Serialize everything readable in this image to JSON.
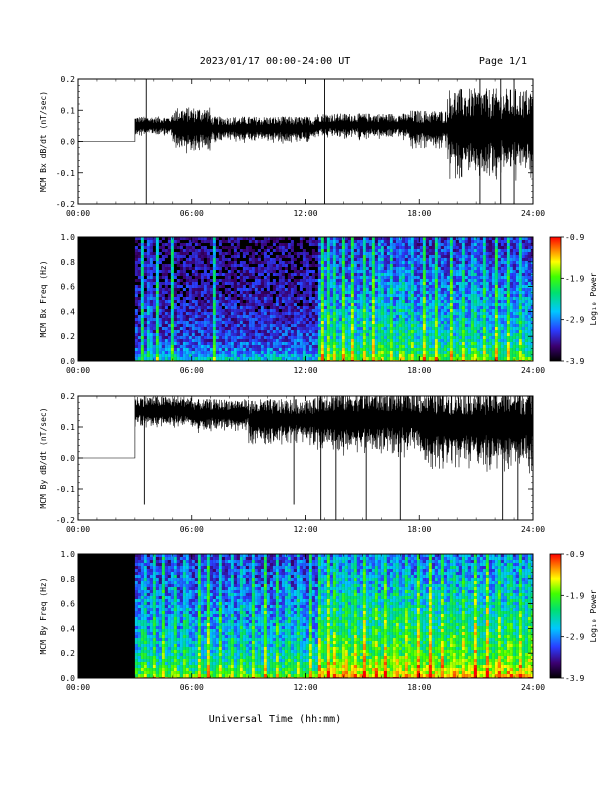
{
  "header": {
    "title": "2023/01/17  00:00-24:00 UT",
    "page": "Page 1/1"
  },
  "xlabel": "Universal Time (hh:mm)",
  "x_ticks": [
    "00:00",
    "06:00",
    "12:00",
    "18:00",
    "24:00"
  ],
  "chart_data": [
    {
      "type": "line",
      "ylabel": "MCM Bx dB/dt (nT/sec)",
      "xlim": [
        0,
        24
      ],
      "ylim": [
        -0.2,
        0.2
      ],
      "y_ticks": [
        "-0.2",
        "-0.1",
        "0.0",
        "0.1",
        "0.2"
      ],
      "series": [
        {
          "segments": [
            {
              "x": [
                0,
                3.0
              ],
              "center": 0.0,
              "amp": 0.0
            },
            {
              "x": [
                3.0,
                5.0
              ],
              "center": 0.05,
              "amp": 0.03
            },
            {
              "x": [
                5.0,
                7.0
              ],
              "center": 0.04,
              "amp": 0.07
            },
            {
              "x": [
                7.0,
                12.5
              ],
              "center": 0.04,
              "amp": 0.04
            },
            {
              "x": [
                12.5,
                17.5
              ],
              "center": 0.05,
              "amp": 0.04
            },
            {
              "x": [
                17.5,
                19.5
              ],
              "center": 0.04,
              "amp": 0.06
            },
            {
              "x": [
                19.5,
                24.0
              ],
              "center": 0.03,
              "amp": 0.14
            }
          ],
          "spikes": [
            {
              "x": 3.6,
              "min": -0.2,
              "max": 0.2
            },
            {
              "x": 13.0,
              "min": -0.2,
              "max": 0.2
            },
            {
              "x": 21.2,
              "min": -0.2,
              "max": 0.2
            },
            {
              "x": 22.3,
              "min": -0.2,
              "max": 0.2
            },
            {
              "x": 23.0,
              "min": -0.2,
              "max": 0.2
            }
          ]
        }
      ]
    },
    {
      "type": "heatmap",
      "ylabel": "MCM Bx Freq (Hz)",
      "xlim": [
        0,
        24
      ],
      "ylim": [
        0.0,
        1.0
      ],
      "y_ticks": [
        "0.0",
        "0.2",
        "0.4",
        "0.6",
        "0.8",
        "1.0"
      ],
      "colorbar": {
        "label": "Log₁₀ Power",
        "range": [
          -3.9,
          -0.9
        ],
        "ticks": [
          "-0.9",
          "-1.9",
          "-2.9",
          "-3.9"
        ]
      },
      "data_start": 3.0,
      "intensity_profile": [
        {
          "x": [
            3.0,
            12.5
          ],
          "base": 0.25
        },
        {
          "x": [
            12.5,
            24.0
          ],
          "base": 0.45
        }
      ],
      "streaks": [
        3.3,
        3.7,
        4.1,
        4.9,
        7.1,
        12.8,
        13.1,
        13.4,
        13.9,
        14.4,
        15.0,
        15.5,
        15.9,
        16.4,
        17.0,
        17.5,
        18.2,
        18.8,
        19.6,
        20.2,
        20.8,
        21.4,
        22.0,
        22.6,
        23.3
      ]
    },
    {
      "type": "line",
      "ylabel": "MCM By dB/dt (nT/sec)",
      "xlim": [
        0,
        24
      ],
      "ylim": [
        -0.2,
        0.2
      ],
      "y_ticks": [
        "-0.2",
        "-0.1",
        "0.0",
        "0.1",
        "0.2"
      ],
      "series": [
        {
          "segments": [
            {
              "x": [
                0,
                3.0
              ],
              "center": 0.0,
              "amp": 0.0
            },
            {
              "x": [
                3.0,
                6.0
              ],
              "center": 0.15,
              "amp": 0.05
            },
            {
              "x": [
                6.0,
                9.0
              ],
              "center": 0.14,
              "amp": 0.05
            },
            {
              "x": [
                9.0,
                12.5
              ],
              "center": 0.12,
              "amp": 0.07
            },
            {
              "x": [
                12.5,
                18.0
              ],
              "center": 0.12,
              "amp": 0.1
            },
            {
              "x": [
                18.0,
                24.0
              ],
              "center": 0.1,
              "amp": 0.13
            }
          ],
          "spikes": [
            {
              "x": 3.5,
              "min": -0.15,
              "max": 0.2
            },
            {
              "x": 11.4,
              "min": -0.15,
              "max": 0.2
            },
            {
              "x": 12.8,
              "min": -0.2,
              "max": 0.2
            },
            {
              "x": 13.6,
              "min": -0.2,
              "max": 0.2
            },
            {
              "x": 15.2,
              "min": -0.2,
              "max": 0.2
            },
            {
              "x": 17.0,
              "min": -0.2,
              "max": 0.2
            },
            {
              "x": 22.4,
              "min": -0.2,
              "max": 0.2
            },
            {
              "x": 23.2,
              "min": -0.2,
              "max": 0.2
            }
          ]
        }
      ]
    },
    {
      "type": "heatmap",
      "ylabel": "MCM By Freq (Hz)",
      "xlim": [
        0,
        24
      ],
      "ylim": [
        0.0,
        1.0
      ],
      "y_ticks": [
        "0.0",
        "0.2",
        "0.4",
        "0.6",
        "0.8",
        "1.0"
      ],
      "colorbar": {
        "label": "Log₁₀ Power",
        "range": [
          -3.9,
          -0.9
        ],
        "ticks": [
          "-0.9",
          "-1.9",
          "-2.9",
          "-3.9"
        ]
      },
      "data_start": 3.0,
      "intensity_profile": [
        {
          "x": [
            3.0,
            12.5
          ],
          "base": 0.45
        },
        {
          "x": [
            12.5,
            24.0
          ],
          "base": 0.62
        }
      ],
      "streaks": [
        3.4,
        3.9,
        4.4,
        5.0,
        5.6,
        6.3,
        6.8,
        7.4,
        8.0,
        8.6,
        9.2,
        9.8,
        10.4,
        11.0,
        11.6,
        12.2,
        12.7,
        13.1,
        13.5,
        14.0,
        14.5,
        15.0,
        15.6,
        16.1,
        16.7,
        17.3,
        17.9,
        18.5,
        19.1,
        19.7,
        20.3,
        20.9,
        21.5,
        22.1,
        22.7,
        23.3,
        23.8
      ]
    }
  ]
}
